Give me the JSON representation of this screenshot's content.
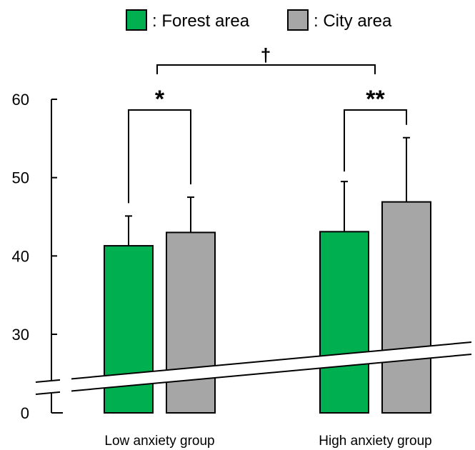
{
  "chart_data": {
    "type": "bar",
    "title": "",
    "xlabel": "",
    "ylabel": "",
    "categories": [
      "Low anxiety group",
      "High anxiety group"
    ],
    "series": [
      {
        "name": ": Forest area",
        "color": "#00b050",
        "values": [
          41.3,
          43.1
        ],
        "errors": [
          3.8,
          6.4
        ]
      },
      {
        "name": ": City area",
        "color": "#a6a6a6",
        "values": [
          43.0,
          46.9
        ],
        "errors": [
          4.5,
          8.2
        ]
      }
    ],
    "y_ticks": [
      0,
      30,
      40,
      50,
      60
    ],
    "y_tick_labels": [
      "0",
      "30",
      "40",
      "50",
      "60"
    ],
    "ylim": [
      0,
      60
    ],
    "axis_break": true,
    "legend_position": "top",
    "annotations": {
      "low_group": "*",
      "high_group": "**",
      "between_groups": "†"
    }
  }
}
